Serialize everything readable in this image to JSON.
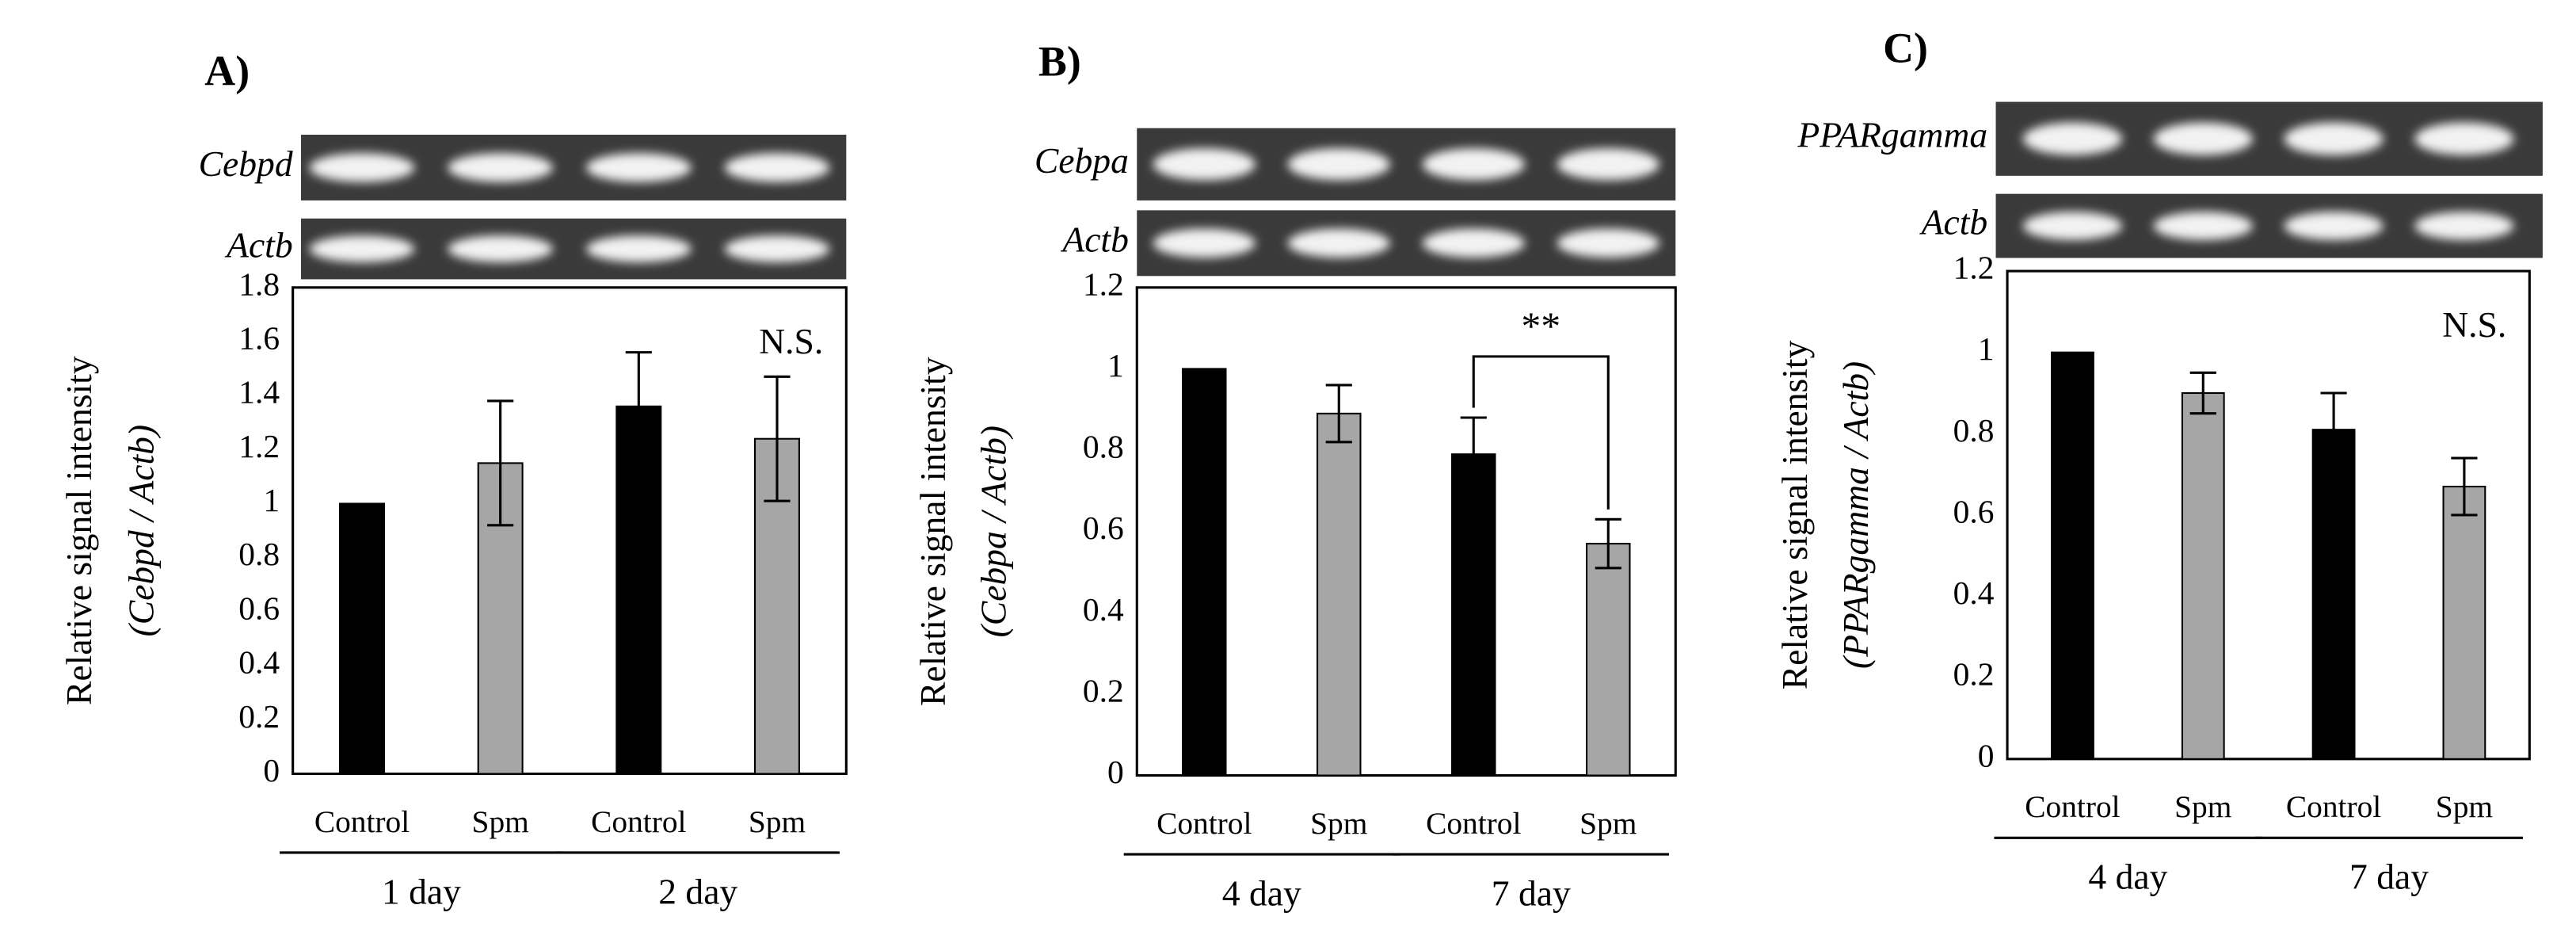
{
  "chart_data": [
    {
      "type": "bar",
      "panel_label": "A)",
      "gels": [
        "Cebpd",
        "Actb"
      ],
      "ylabel": "Relative signal intensity",
      "ylabel_ratio": "(Cebpd / Actb)",
      "categories": [
        "Control",
        "Spm",
        "Control",
        "Spm"
      ],
      "groups": [
        "1 day",
        "2 day"
      ],
      "values": [
        1.0,
        1.15,
        1.36,
        1.24
      ],
      "errors": [
        null,
        0.23,
        0.2,
        0.23
      ],
      "colors": [
        "#000000",
        "#a6a6a6",
        "#000000",
        "#a6a6a6"
      ],
      "ylim": [
        0,
        1.8
      ],
      "yticks": [
        0,
        0.2,
        0.4,
        0.6,
        0.8,
        1,
        1.2,
        1.4,
        1.6,
        1.8
      ],
      "annotation": "N.S."
    },
    {
      "type": "bar",
      "panel_label": "B)",
      "gels": [
        "Cebpa",
        "Actb"
      ],
      "ylabel": "Relative signal intensity",
      "ylabel_ratio": "(Cebpa / Actb)",
      "categories": [
        "Control",
        "Spm",
        "Control",
        "Spm"
      ],
      "groups": [
        "4 day",
        "7 day"
      ],
      "values": [
        1.0,
        0.89,
        0.79,
        0.57
      ],
      "errors": [
        null,
        0.07,
        0.09,
        0.06
      ],
      "colors": [
        "#000000",
        "#a6a6a6",
        "#000000",
        "#a6a6a6"
      ],
      "ylim": [
        0,
        1.2
      ],
      "yticks": [
        0,
        0.2,
        0.4,
        0.6,
        0.8,
        1,
        1.2
      ],
      "significance": {
        "label": "**",
        "between": [
          2,
          3
        ]
      }
    },
    {
      "type": "bar",
      "panel_label": "C)",
      "gels": [
        "PPARgamma",
        "Actb"
      ],
      "ylabel": "Relative signal intensity",
      "ylabel_ratio": "(PPARgamma / Actb)",
      "categories": [
        "Control",
        "Spm",
        "Control",
        "Spm"
      ],
      "groups": [
        "4 day",
        "7 day"
      ],
      "values": [
        1.0,
        0.9,
        0.81,
        0.67
      ],
      "errors": [
        null,
        0.05,
        0.09,
        0.07
      ],
      "colors": [
        "#000000",
        "#a6a6a6",
        "#000000",
        "#a6a6a6"
      ],
      "ylim": [
        0,
        1.2
      ],
      "yticks": [
        0,
        0.2,
        0.4,
        0.6,
        0.8,
        1,
        1.2
      ],
      "annotation": "N.S."
    }
  ]
}
